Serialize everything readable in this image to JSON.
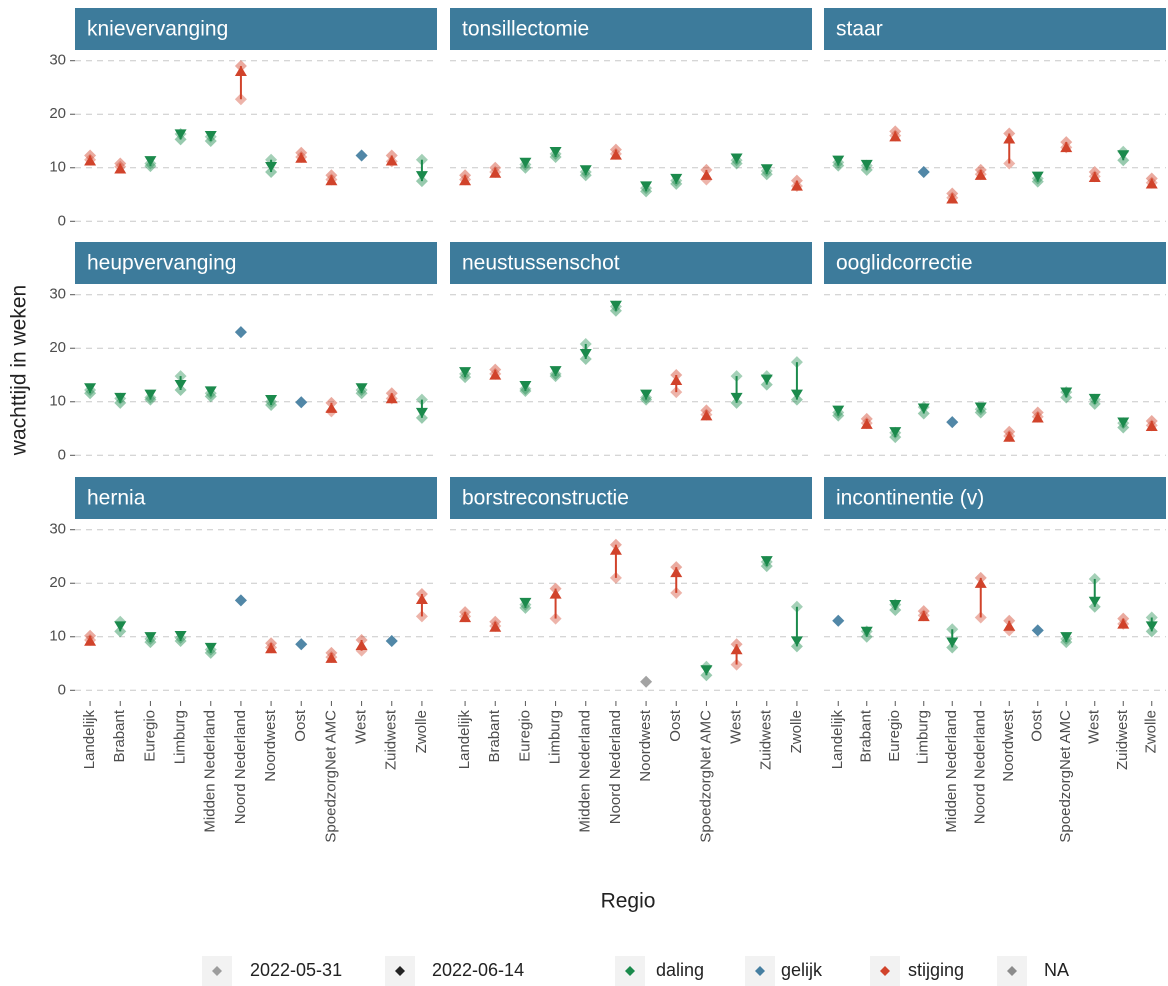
{
  "chart_data": {
    "type": "arrow",
    "xlabel": "Regio",
    "ylabel": "wachttijd in weken",
    "categories": [
      "Landelijk",
      "Brabant",
      "Euregio",
      "Limburg",
      "Midden Nederland",
      "Noord Nederland",
      "Noordwest",
      "Oost",
      "SpoedzorgNet AMC",
      "West",
      "Zuidwest",
      "Zwolle"
    ],
    "ylim": [
      -2,
      32
    ],
    "yticks": [
      0,
      10,
      20,
      30
    ],
    "grid": true,
    "dates": [
      "2022-05-31",
      "2022-06-14"
    ],
    "status": [
      {
        "name": "daling",
        "color": "#1b8a4c"
      },
      {
        "name": "gelijk",
        "color": "#467fa1"
      },
      {
        "name": "stijging",
        "color": "#d1432b"
      },
      {
        "name": "NA",
        "color": "#8c8c8c"
      }
    ],
    "strip_color": "#3d7b9b",
    "facets": [
      {
        "title": "knievervanging",
        "start": [
          11.5,
          10.2,
          10.8,
          16.3,
          15.8,
          22.8,
          11.5,
          12,
          7.8,
          12.3,
          11.2,
          11.5
        ],
        "end": [
          12.3,
          10.8,
          10.3,
          15.3,
          15.0,
          29,
          9.2,
          12.8,
          8.6,
          12.3,
          12.3,
          7.5
        ]
      },
      {
        "title": "tonsillectomie",
        "start": [
          7.8,
          9.2,
          10.6,
          12.6,
          9.2,
          12.6,
          6.2,
          7.6,
          7.8,
          11.4,
          9.4,
          6.6
        ],
        "end": [
          8.6,
          10,
          10,
          12,
          8.6,
          13.4,
          5.6,
          7,
          9.6,
          10.8,
          8.8,
          7.6
        ]
      },
      {
        "title": "staar",
        "start": [
          11,
          10.4,
          16,
          9.2,
          4.4,
          8.8,
          10.8,
          8,
          13.8,
          8.4,
          13,
          7.2
        ],
        "end": [
          10.4,
          9.6,
          16.8,
          9.2,
          5.2,
          9.6,
          16.4,
          7.4,
          14.8,
          9.2,
          11.4,
          8
        ]
      },
      {
        "title": "heupvervanging",
        "start": [
          12.2,
          10.6,
          10.8,
          14.8,
          11.6,
          23,
          10,
          9.9,
          8.2,
          12.2,
          10.6,
          10.4
        ],
        "end": [
          11.6,
          9.8,
          10.4,
          12.2,
          11,
          23,
          9.4,
          9.9,
          9.8,
          11.6,
          11.6,
          7
        ]
      },
      {
        "title": "neustussenschot",
        "start": [
          15.2,
          15.2,
          12.4,
          15.2,
          20.8,
          27.8,
          10.8,
          11.8,
          7.6,
          14.8,
          14.8,
          17.4
        ],
        "end": [
          14.6,
          16,
          12,
          14.8,
          18,
          27,
          10.4,
          15,
          8.4,
          9.8,
          13.2,
          10.4
        ]
      },
      {
        "title": "ooglidcorrectie",
        "start": [
          8,
          6,
          4.2,
          9,
          6.2,
          8.6,
          3.6,
          7.2,
          11.8,
          10.4,
          6,
          5.6
        ],
        "end": [
          7.4,
          6.8,
          3.4,
          7.8,
          6.2,
          8,
          4.4,
          8,
          10.8,
          9.6,
          5.2,
          6.4
        ]
      },
      {
        "title": "hernia",
        "start": [
          9.4,
          12.8,
          9.6,
          9.8,
          7.6,
          16.8,
          8,
          8.6,
          6.2,
          7.4,
          9.2,
          13.8
        ],
        "end": [
          10.2,
          11,
          9,
          9.2,
          7,
          16.8,
          8.8,
          8.6,
          7,
          9.4,
          9.2,
          18
        ]
      },
      {
        "title": "borstreconstructie",
        "start": [
          13.8,
          12,
          16,
          13.4,
          null,
          21,
          1.6,
          18.2,
          4.4,
          4.8,
          24,
          15.6
        ],
        "end": [
          14.6,
          12.8,
          15.4,
          19,
          null,
          27.2,
          null,
          23,
          2.8,
          8.6,
          23.2,
          8.2
        ]
      },
      {
        "title": "incontinentie (v)",
        "start": [
          13,
          11,
          16,
          14,
          11.4,
          13.6,
          11.2,
          11.2,
          9.6,
          20.8,
          12.4,
          13.6
        ],
        "end": [
          13,
          10,
          15,
          14.8,
          8,
          21,
          13,
          11.2,
          9,
          15.6,
          13.4,
          11
        ]
      }
    ]
  }
}
